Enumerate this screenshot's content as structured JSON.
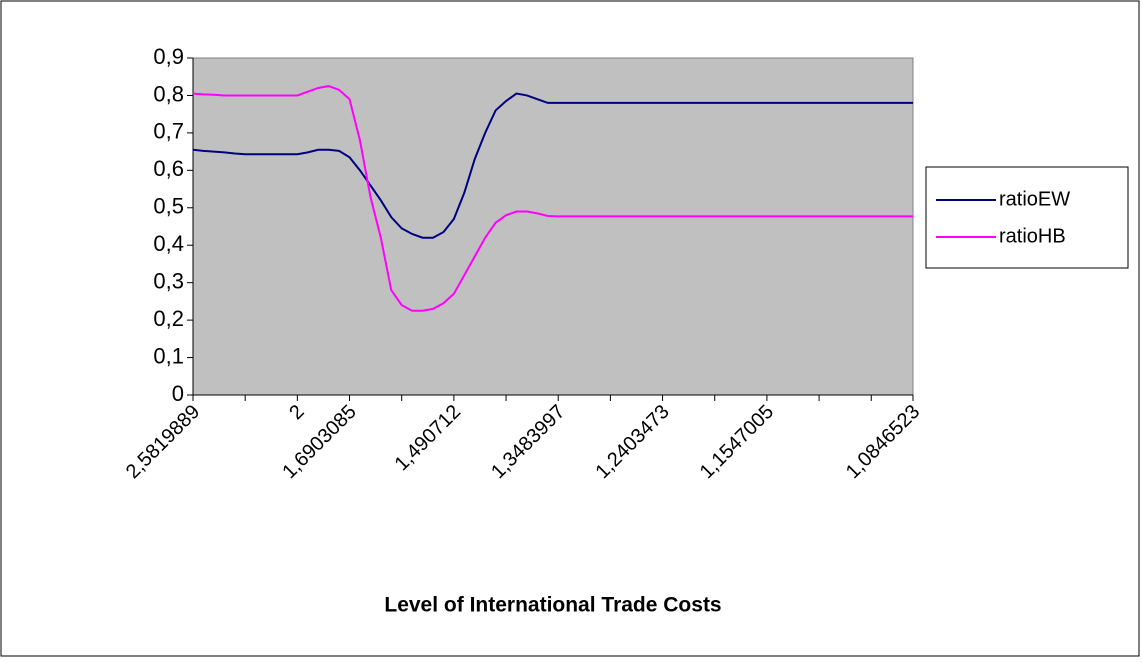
{
  "chart_data": {
    "type": "line",
    "x_label": "Level of International Trade Costs",
    "categories": [
      "2,5819889",
      null,
      null,
      null,
      null,
      null,
      null,
      null,
      null,
      null,
      "2",
      null,
      null,
      null,
      null,
      "1,6903085",
      null,
      null,
      null,
      null,
      null,
      null,
      null,
      null,
      null,
      "1,490712",
      null,
      null,
      null,
      null,
      null,
      null,
      null,
      null,
      null,
      "1,3483997",
      null,
      null,
      null,
      null,
      null,
      null,
      null,
      null,
      null,
      "1,2403473",
      null,
      null,
      null,
      null,
      null,
      null,
      null,
      null,
      null,
      "1,1547005",
      null,
      null,
      null,
      null,
      null,
      null,
      null,
      null,
      null,
      null,
      null,
      null,
      null,
      "1,0846523"
    ],
    "series": [
      {
        "name": "ratioEW",
        "color": "#000080",
        "values": [
          0.655,
          0.652,
          0.65,
          0.648,
          0.645,
          0.643,
          0.643,
          0.643,
          0.643,
          0.643,
          0.643,
          0.648,
          0.655,
          0.655,
          0.652,
          0.635,
          0.6,
          0.56,
          0.52,
          0.475,
          0.445,
          0.43,
          0.42,
          0.42,
          0.435,
          0.47,
          0.54,
          0.63,
          0.7,
          0.76,
          0.785,
          0.805,
          0.8,
          0.79,
          0.78,
          0.78,
          0.78,
          0.78,
          0.78,
          0.78,
          0.78,
          0.78,
          0.78,
          0.78,
          0.78,
          0.78,
          0.78,
          0.78,
          0.78,
          0.78,
          0.78,
          0.78,
          0.78,
          0.78,
          0.78,
          0.78,
          0.78,
          0.78,
          0.78,
          0.78,
          0.78,
          0.78,
          0.78,
          0.78,
          0.78,
          0.78,
          0.78,
          0.78,
          0.78,
          0.78
        ]
      },
      {
        "name": "ratioHB",
        "color": "#ff00ff",
        "values": [
          0.805,
          0.803,
          0.802,
          0.8,
          0.8,
          0.8,
          0.8,
          0.8,
          0.8,
          0.8,
          0.8,
          0.81,
          0.82,
          0.825,
          0.815,
          0.79,
          0.68,
          0.53,
          0.42,
          0.28,
          0.24,
          0.225,
          0.225,
          0.23,
          0.245,
          0.27,
          0.32,
          0.37,
          0.42,
          0.46,
          0.48,
          0.49,
          0.49,
          0.485,
          0.478,
          0.477,
          0.477,
          0.477,
          0.477,
          0.477,
          0.477,
          0.477,
          0.477,
          0.477,
          0.477,
          0.477,
          0.477,
          0.477,
          0.477,
          0.477,
          0.477,
          0.477,
          0.477,
          0.477,
          0.477,
          0.477,
          0.477,
          0.477,
          0.477,
          0.477,
          0.477,
          0.477,
          0.477,
          0.477,
          0.477,
          0.477,
          0.477,
          0.477,
          0.477,
          0.477
        ]
      }
    ],
    "ylim": [
      0,
      0.9
    ],
    "yticks": [
      {
        "value": 0,
        "label": "0"
      },
      {
        "value": 0.1,
        "label": "0,1"
      },
      {
        "value": 0.2,
        "label": "0,2"
      },
      {
        "value": 0.3,
        "label": "0,3"
      },
      {
        "value": 0.4,
        "label": "0,4"
      },
      {
        "value": 0.5,
        "label": "0,5"
      },
      {
        "value": 0.6,
        "label": "0,6"
      },
      {
        "value": 0.7,
        "label": "0,7"
      },
      {
        "value": 0.8,
        "label": "0,8"
      },
      {
        "value": 0.9,
        "label": "0,9"
      }
    ],
    "plot_background": "#c0c0c0",
    "grid": false,
    "legend": "right"
  }
}
